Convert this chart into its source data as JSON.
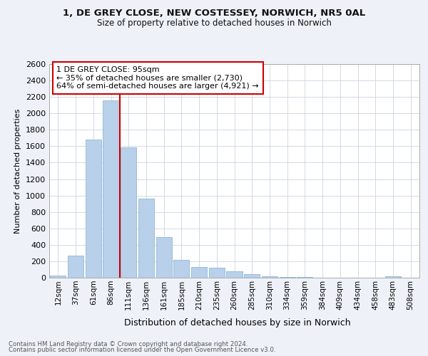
{
  "title_line1": "1, DE GREY CLOSE, NEW COSTESSEY, NORWICH, NR5 0AL",
  "title_line2": "Size of property relative to detached houses in Norwich",
  "xlabel": "Distribution of detached houses by size in Norwich",
  "ylabel": "Number of detached properties",
  "categories": [
    "12sqm",
    "37sqm",
    "61sqm",
    "86sqm",
    "111sqm",
    "136sqm",
    "161sqm",
    "185sqm",
    "210sqm",
    "235sqm",
    "260sqm",
    "285sqm",
    "310sqm",
    "334sqm",
    "359sqm",
    "384sqm",
    "409sqm",
    "434sqm",
    "458sqm",
    "483sqm",
    "508sqm"
  ],
  "values": [
    30,
    270,
    1680,
    2160,
    1590,
    960,
    490,
    215,
    130,
    120,
    80,
    40,
    20,
    10,
    5,
    3,
    3,
    2,
    1,
    20,
    1
  ],
  "bar_color": "#b8d0ea",
  "bar_edge_color": "#8fb8d8",
  "vline_x_index": 3.5,
  "vline_color": "#cc0000",
  "annotation_text": "1 DE GREY CLOSE: 95sqm\n← 35% of detached houses are smaller (2,730)\n64% of semi-detached houses are larger (4,921) →",
  "annotation_box_color": "#cc0000",
  "ylim": [
    0,
    2600
  ],
  "yticks": [
    0,
    200,
    400,
    600,
    800,
    1000,
    1200,
    1400,
    1600,
    1800,
    2000,
    2200,
    2400,
    2600
  ],
  "footnote_line1": "Contains HM Land Registry data © Crown copyright and database right 2024.",
  "footnote_line2": "Contains public sector information licensed under the Open Government Licence v3.0.",
  "bg_color": "#eef2f8",
  "plot_bg_color": "#ffffff",
  "grid_color": "#ccd4e0"
}
